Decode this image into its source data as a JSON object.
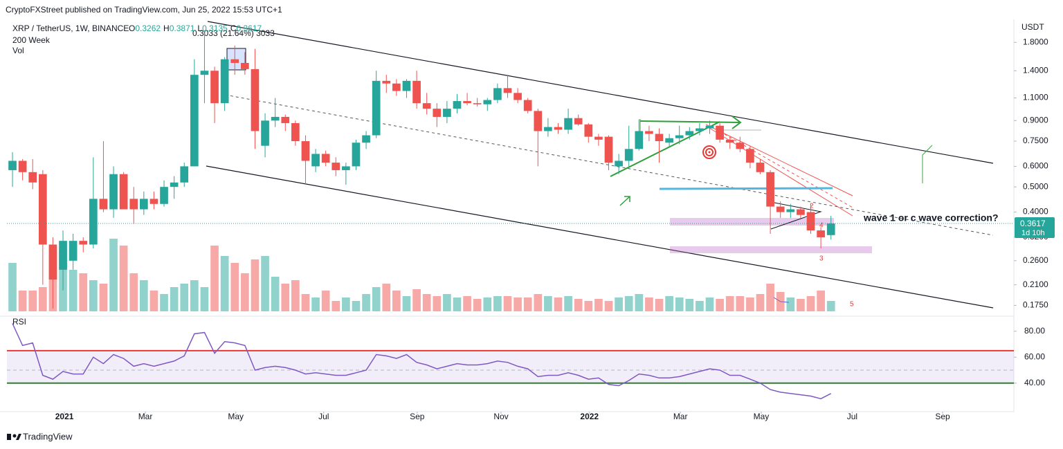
{
  "header": "CryptoFXStreet published on TradingView.com, Jun 25, 2022 15:53 UTC+1",
  "footer": "TradingView",
  "chart_data": {
    "type": "candlestick",
    "title": "XRP / TetherUS, 1W, BINANCE",
    "ohlc_prefixes": [
      "O",
      "H",
      "L",
      "C"
    ],
    "measure_label": "0.3033 (21.64%) 3033",
    "indicator_labels": [
      "200 Week",
      "Vol"
    ],
    "currency": "USDT",
    "countdown": "1d 10h",
    "up_color": "#26a69a",
    "down_color": "#ef5350",
    "log_scale": true,
    "grid": false,
    "ylim": [
      0.161,
      2.18
    ],
    "yticks": [
      {
        "value": 1.8,
        "label": "1.8000"
      },
      {
        "value": 1.4,
        "label": "1.4000"
      },
      {
        "value": 1.1,
        "label": "1.1000"
      },
      {
        "value": 0.9,
        "label": "0.9000"
      },
      {
        "value": 0.75,
        "label": "0.7500"
      },
      {
        "value": 0.6,
        "label": "0.6000"
      },
      {
        "value": 0.5,
        "label": "0.5000"
      },
      {
        "value": 0.4,
        "label": "0.4000"
      },
      {
        "value": 0.32,
        "label": "0.3200"
      },
      {
        "value": 0.26,
        "label": "0.2600"
      },
      {
        "value": 0.21,
        "label": "0.2100"
      },
      {
        "value": 0.175,
        "label": "0.1750"
      }
    ],
    "xlim": [
      -0.55,
      99.1
    ],
    "xticks": [
      {
        "value": 5.14,
        "label": "2021"
      },
      {
        "value": 13.15,
        "label": "Mar"
      },
      {
        "value": 22.1,
        "label": "May"
      },
      {
        "value": 30.8,
        "label": "Jul"
      },
      {
        "value": 40.05,
        "label": "Sep"
      },
      {
        "value": 48.35,
        "label": "Nov"
      },
      {
        "value": 57.1,
        "label": "2022"
      },
      {
        "value": 66.1,
        "label": "Mar"
      },
      {
        "value": 74.1,
        "label": "May"
      },
      {
        "value": 83.1,
        "label": "Jul"
      },
      {
        "value": 92.05,
        "label": "Sep"
      }
    ],
    "open": [
      0.58,
      0.63,
      0.57,
      0.56,
      0.3,
      0.24,
      0.26,
      0.31,
      0.3,
      0.45,
      0.41,
      0.56,
      0.45,
      0.41,
      0.45,
      0.43,
      0.5,
      0.52,
      0.6,
      1.35,
      1.4,
      1.05,
      1.55,
      1.5,
      1.42,
      0.72,
      0.9,
      0.93,
      0.88,
      0.75,
      0.6,
      0.67,
      0.62,
      0.58,
      0.6,
      0.74,
      0.79,
      1.28,
      1.25,
      1.17,
      1.28,
      1.05,
      1.0,
      0.93,
      1.0,
      1.07,
      1.05,
      1.04,
      1.08,
      1.2,
      1.15,
      1.08,
      0.98,
      0.82,
      0.85,
      0.83,
      0.92,
      0.87,
      0.78,
      0.78,
      0.6,
      0.63,
      0.7,
      0.82,
      0.8,
      0.74,
      0.77,
      0.79,
      0.82,
      0.84,
      0.86,
      0.76,
      0.74,
      0.7,
      0.62,
      0.57,
      0.42,
      0.4,
      0.41,
      0.4,
      0.34,
      0.3262
    ],
    "high": [
      0.68,
      0.64,
      0.64,
      0.58,
      0.32,
      0.34,
      0.33,
      0.32,
      0.65,
      0.75,
      0.6,
      0.57,
      0.5,
      0.48,
      0.48,
      0.53,
      0.55,
      0.62,
      1.55,
      1.96,
      1.45,
      1.58,
      1.75,
      1.65,
      1.7,
      0.96,
      1.1,
      0.95,
      0.9,
      0.79,
      0.7,
      0.69,
      0.65,
      0.62,
      0.76,
      0.82,
      1.4,
      1.35,
      1.3,
      1.3,
      1.4,
      1.15,
      1.05,
      1.07,
      1.14,
      1.15,
      1.1,
      1.1,
      1.25,
      1.35,
      1.2,
      1.1,
      1.0,
      0.92,
      0.88,
      1.0,
      0.95,
      0.88,
      0.8,
      0.79,
      0.67,
      0.86,
      0.91,
      0.86,
      0.84,
      0.8,
      0.86,
      0.85,
      0.88,
      0.9,
      0.88,
      0.78,
      0.78,
      0.72,
      0.64,
      0.58,
      0.44,
      0.43,
      0.42,
      0.43,
      0.35,
      0.3871
    ],
    "low": [
      0.5,
      0.53,
      0.49,
      0.21,
      0.17,
      0.2,
      0.24,
      0.28,
      0.29,
      0.4,
      0.38,
      0.41,
      0.36,
      0.39,
      0.41,
      0.42,
      0.45,
      0.5,
      0.6,
      1.05,
      0.88,
      0.98,
      1.35,
      1.35,
      0.7,
      0.65,
      0.85,
      0.82,
      0.72,
      0.51,
      0.57,
      0.6,
      0.55,
      0.51,
      0.58,
      0.7,
      0.77,
      1.15,
      1.12,
      1.1,
      1.0,
      0.95,
      0.85,
      0.88,
      0.96,
      1.03,
      1.02,
      0.98,
      1.05,
      1.1,
      1.05,
      0.96,
      0.6,
      0.78,
      0.8,
      0.8,
      0.86,
      0.74,
      0.72,
      0.58,
      0.56,
      0.6,
      0.69,
      0.75,
      0.62,
      0.71,
      0.73,
      0.76,
      0.79,
      0.8,
      0.74,
      0.7,
      0.68,
      0.59,
      0.56,
      0.33,
      0.38,
      0.38,
      0.38,
      0.33,
      0.29,
      0.3135
    ],
    "close": [
      0.63,
      0.57,
      0.52,
      0.3,
      0.22,
      0.31,
      0.31,
      0.3,
      0.45,
      0.41,
      0.56,
      0.41,
      0.41,
      0.45,
      0.43,
      0.5,
      0.52,
      0.6,
      1.35,
      1.4,
      1.05,
      1.55,
      1.5,
      1.42,
      0.82,
      0.9,
      0.93,
      0.88,
      0.75,
      0.63,
      0.67,
      0.62,
      0.58,
      0.6,
      0.74,
      0.79,
      1.28,
      1.25,
      1.17,
      1.28,
      1.05,
      1.0,
      0.93,
      1.0,
      1.07,
      1.05,
      1.04,
      1.08,
      1.2,
      1.15,
      1.08,
      0.98,
      0.82,
      0.85,
      0.83,
      0.92,
      0.87,
      0.78,
      0.76,
      0.62,
      0.63,
      0.7,
      0.82,
      0.8,
      0.75,
      0.77,
      0.79,
      0.82,
      0.84,
      0.86,
      0.76,
      0.74,
      0.7,
      0.62,
      0.57,
      0.42,
      0.4,
      0.41,
      0.39,
      0.34,
      0.32,
      0.3617
    ],
    "volume_lim": [
      0,
      120
    ],
    "volume": [
      70,
      30,
      30,
      35,
      88,
      88,
      60,
      55,
      45,
      40,
      105,
      95,
      55,
      45,
      30,
      25,
      35,
      40,
      45,
      35,
      95,
      80,
      70,
      55,
      75,
      80,
      50,
      40,
      45,
      25,
      20,
      30,
      15,
      20,
      15,
      25,
      35,
      40,
      30,
      22,
      32,
      25,
      22,
      25,
      20,
      22,
      18,
      20,
      22,
      22,
      20,
      20,
      25,
      22,
      20,
      22,
      18,
      15,
      18,
      15,
      20,
      22,
      25,
      20,
      18,
      22,
      20,
      18,
      15,
      20,
      18,
      22,
      22,
      20,
      25,
      40,
      28,
      20,
      18,
      22,
      30,
      15
    ],
    "rsi": {
      "name": "RSI",
      "color": "#7e57c2",
      "ylim": [
        18,
        90
      ],
      "yticks": [
        {
          "value": 80,
          "label": "80.00"
        },
        {
          "value": 60,
          "label": "60.00"
        },
        {
          "value": 40,
          "label": "40.00"
        }
      ],
      "upper": 65,
      "middle": 50,
      "lower": 40,
      "values": [
        86,
        69,
        71,
        46,
        43,
        49,
        47,
        47,
        60,
        55,
        62,
        59,
        53,
        55,
        53,
        55,
        57,
        61,
        78,
        79,
        63,
        72,
        71,
        69,
        50,
        52,
        53,
        52,
        50,
        47,
        48,
        47,
        46,
        46,
        48,
        50,
        62,
        61,
        59,
        62,
        56,
        54,
        51,
        53,
        55,
        54,
        54,
        55,
        57,
        56,
        53,
        51,
        45,
        46,
        46,
        48,
        46,
        43,
        44,
        39,
        38,
        42,
        47,
        46,
        44,
        44,
        45,
        47,
        49,
        51,
        50,
        46,
        46,
        43,
        40,
        35,
        33,
        32,
        31,
        30,
        28,
        32
      ]
    },
    "annotations": [
      "wave 1 or c wave correction?",
      "3",
      "4",
      "5",
      "2"
    ]
  }
}
